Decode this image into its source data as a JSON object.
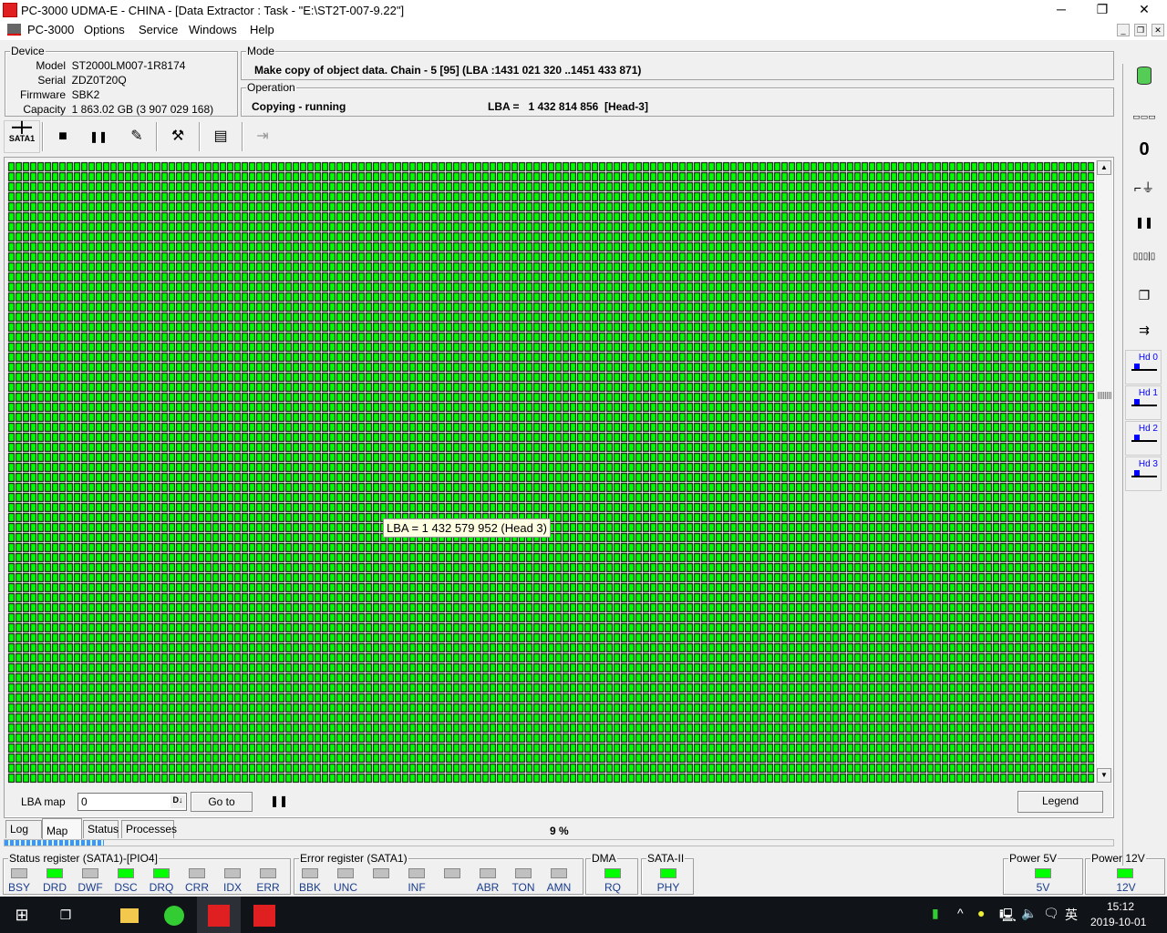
{
  "window": {
    "title": "PC-3000 UDMA-E - CHINA - [Data Extractor : Task - \"E:\\ST2T-007-9.22\"]",
    "minimize": "─",
    "maximize": "❐",
    "close": "✕"
  },
  "menu": {
    "items": [
      "PC-3000",
      "Options",
      "Service",
      "Windows",
      "Help"
    ],
    "mdi": [
      "_",
      "❐",
      "✕"
    ]
  },
  "device": {
    "legend": "Device",
    "rows": [
      {
        "label": "Model",
        "value": "ST2000LM007-1R8174"
      },
      {
        "label": "Serial",
        "value": "ZDZ0T20Q"
      },
      {
        "label": "Firmware",
        "value": "SBK2"
      },
      {
        "label": "Capacity",
        "value": "1 863.02 GB (3 907 029 168)"
      }
    ]
  },
  "mode": {
    "legend": "Mode",
    "text": "Make copy of object data. Chain - 5 [95] (LBA :1431 021 320 ..1451 433 871)"
  },
  "operation": {
    "legend": "Operation",
    "status": "Copying - running",
    "lba": "LBA =   1 432 814 856  [Head-3]"
  },
  "toolbar": {
    "sata_label": "SATA1",
    "stop": "■",
    "pause": "❚❚",
    "report": "✎",
    "tools": "⚒",
    "windows": "▤",
    "exit": "⇥"
  },
  "map": {
    "tooltip": "LBA = 1 432 579 952 (Head 3)",
    "cell_color": "#00ff00",
    "border_color": "#000000"
  },
  "lbamap": {
    "label": "LBA map",
    "value": "0",
    "dec_icon": "D↓",
    "goto": "Go to",
    "pause": "❚❚",
    "legend": "Legend"
  },
  "tabs": [
    {
      "label": "Log"
    },
    {
      "label": "Map",
      "active": true
    },
    {
      "label": "Status"
    },
    {
      "label": "Processes"
    }
  ],
  "progress": {
    "text": "9 %",
    "percent": 9,
    "color": "#3399ff"
  },
  "status_register": {
    "legend": "Status register (SATA1)-[PIO4]",
    "leds": [
      {
        "name": "BSY",
        "on": false
      },
      {
        "name": "DRD",
        "on": true
      },
      {
        "name": "DWF",
        "on": false
      },
      {
        "name": "DSC",
        "on": true
      },
      {
        "name": "DRQ",
        "on": true
      },
      {
        "name": "CRR",
        "on": false
      },
      {
        "name": "IDX",
        "on": false
      },
      {
        "name": "ERR",
        "on": false
      }
    ]
  },
  "error_register": {
    "legend": "Error register (SATA1)",
    "leds": [
      {
        "name": "BBK",
        "on": false
      },
      {
        "name": "UNC",
        "on": false
      },
      {
        "name": "",
        "on": false
      },
      {
        "name": "INF",
        "on": false
      },
      {
        "name": "",
        "on": false
      },
      {
        "name": "ABR",
        "on": false
      },
      {
        "name": "TON",
        "on": false
      },
      {
        "name": "AMN",
        "on": false
      }
    ]
  },
  "dma": {
    "legend": "DMA",
    "led": "RQ",
    "on": true
  },
  "sata2": {
    "legend": "SATA-II",
    "led": "PHY",
    "on": true
  },
  "power5": {
    "legend": "Power 5V",
    "led": "5V",
    "on": true
  },
  "power12": {
    "legend": "Power 12V",
    "led": "12V",
    "on": true
  },
  "right_toolbar": {
    "heads": [
      "Hd 0",
      "Hd 1",
      "Hd 2",
      "Hd 3"
    ],
    "pause": "❚❚"
  },
  "taskbar": {
    "time": "15:12",
    "date": "2019-10-01",
    "ime": "英",
    "start": "⊞",
    "taskview": "❐",
    "tray_up": "^",
    "volume": "🔈",
    "notif": "🗨"
  }
}
